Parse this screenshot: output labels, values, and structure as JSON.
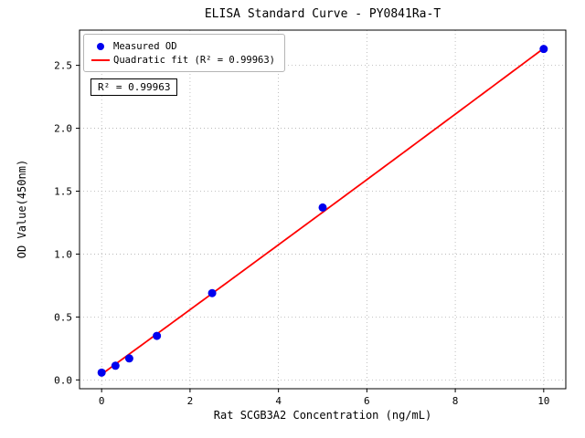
{
  "chart_data": {
    "type": "scatter",
    "title": "ELISA Standard Curve - PY0841Ra-T",
    "xlabel": "Rat SCGB3A2 Concentration (ng/mL)",
    "ylabel": "OD Value(450nm)",
    "xlim": [
      -0.5,
      10.5
    ],
    "ylim": [
      -0.07,
      2.78
    ],
    "grid": true,
    "legend_position": "upper-left",
    "x_ticks": {
      "values": [
        0,
        2,
        4,
        6,
        8,
        10
      ],
      "labels": [
        "0",
        "2",
        "4",
        "6",
        "8",
        "10"
      ]
    },
    "y_ticks": {
      "values": [
        0,
        0.5,
        1.0,
        1.5,
        2.0,
        2.5
      ],
      "labels": [
        "0.0",
        "0.5",
        "1.0",
        "1.5",
        "2.0",
        "2.5"
      ]
    },
    "series": [
      {
        "name": "Measured OD",
        "type": "scatter",
        "color": "#0000ee",
        "x": [
          0,
          0.3125,
          0.625,
          1.25,
          2.5,
          5,
          10
        ],
        "y": [
          0.058,
          0.113,
          0.171,
          0.35,
          0.69,
          1.37,
          2.63
        ]
      },
      {
        "name": "Quadratic fit (R² = 0.99963)",
        "type": "line",
        "color": "#ff0000",
        "fit": "quadratic",
        "coefficients": [
          0.045,
          0.256,
          0.0003
        ],
        "x_range": [
          0,
          10
        ],
        "r_squared": 0.99963
      }
    ],
    "legend": [
      {
        "label": "Measured OD",
        "marker": "dot",
        "color": "#0000ee"
      },
      {
        "label": "Quadratic fit (R² = 0.99963)",
        "marker": "line",
        "color": "#ff0000"
      }
    ],
    "annotation": "R² = 0.99963",
    "grid_color": "#b0b0b0",
    "axis_color": "#000000"
  }
}
